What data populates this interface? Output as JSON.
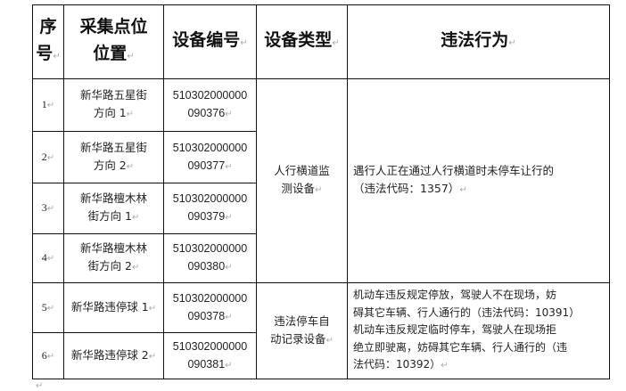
{
  "table": {
    "headers": [
      "序号",
      "采集点位位置",
      "设备编号",
      "设备类型",
      "违法行为"
    ],
    "header_lines": {
      "index": [
        "序",
        "号"
      ],
      "location": [
        "采集点位",
        "位置"
      ]
    },
    "rows": [
      {
        "index": "1",
        "location": [
          "新华路五星街",
          "方向 1"
        ],
        "device_id": [
          "510302000000",
          "090376"
        ]
      },
      {
        "index": "2",
        "location": [
          "新华路五星街",
          "方向 2"
        ],
        "device_id": [
          "510302000000",
          "090377"
        ]
      },
      {
        "index": "3",
        "location": [
          "新华路檀木林",
          "街方向 1"
        ],
        "device_id": [
          "510302000000",
          "090379"
        ]
      },
      {
        "index": "4",
        "location": [
          "新华路檀木林",
          "街方向 2"
        ],
        "device_id": [
          "510302000000",
          "090380"
        ]
      },
      {
        "index": "5",
        "location": [
          "新华路违停球 1"
        ],
        "device_id": [
          "510302000000",
          "090378"
        ]
      },
      {
        "index": "6",
        "location": [
          "新华路违停球 2"
        ],
        "device_id": [
          "510302000000",
          "090381"
        ]
      }
    ],
    "groups": [
      {
        "device_type": [
          "人行横道监",
          "测设备"
        ],
        "violation": [
          "遇行人正在通过人行横道时未停车让行的",
          "（违法代码：1357）"
        ]
      },
      {
        "device_type": [
          "违法停车自",
          "动记录设备"
        ],
        "violation": [
          "机动车违反规定停放，驾驶人不在现场，妨",
          "碍其它车辆、行人通行的（违法代码：10391）",
          "机动车违反规定临时停车，驾驶人在现场拒",
          "绝立即驶离，妨碍其它车辆、行人通行的（违",
          "法代码：10392）"
        ]
      }
    ]
  }
}
